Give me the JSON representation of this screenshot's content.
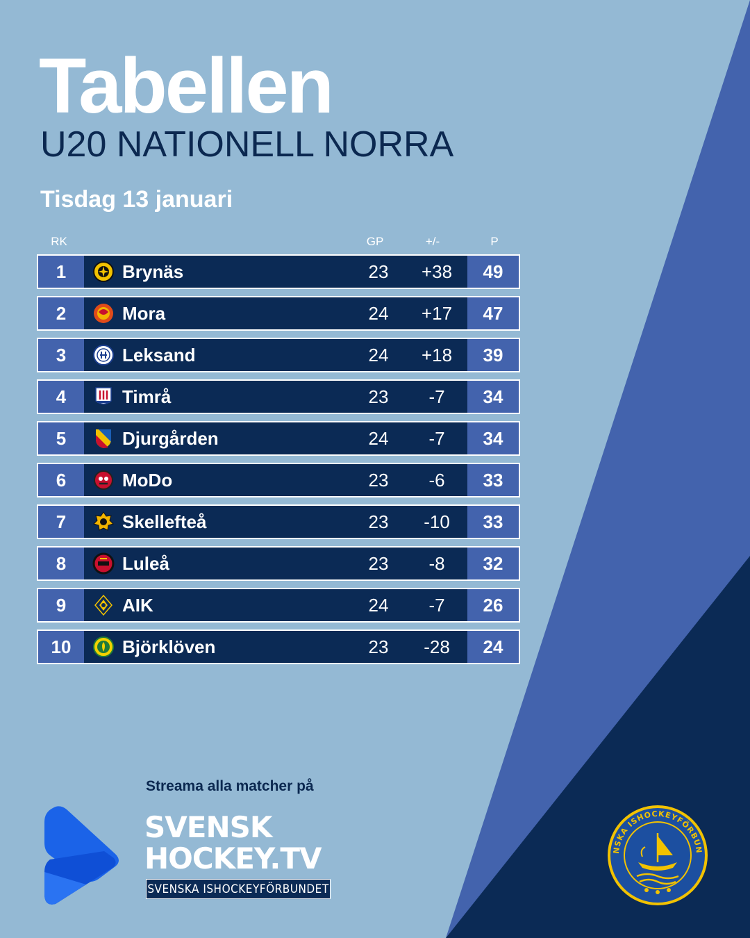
{
  "title": "Tabellen",
  "subtitle": "U20 NATIONELL NORRA",
  "date": "Tisdag 13 januari",
  "columns": {
    "rank": "RK",
    "gp": "GP",
    "diff": "+/-",
    "points": "P"
  },
  "standings": [
    {
      "rank": "1",
      "team": "Brynäs",
      "gp": "23",
      "diff": "+38",
      "points": "49"
    },
    {
      "rank": "2",
      "team": "Mora",
      "gp": "24",
      "diff": "+17",
      "points": "47"
    },
    {
      "rank": "3",
      "team": "Leksand",
      "gp": "24",
      "diff": "+18",
      "points": "39"
    },
    {
      "rank": "4",
      "team": "Timrå",
      "gp": "23",
      "diff": "-7",
      "points": "34"
    },
    {
      "rank": "5",
      "team": "Djurgården",
      "gp": "24",
      "diff": "-7",
      "points": "34"
    },
    {
      "rank": "6",
      "team": "MoDo",
      "gp": "23",
      "diff": "-6",
      "points": "33"
    },
    {
      "rank": "7",
      "team": "Skellefteå",
      "gp": "23",
      "diff": "-10",
      "points": "33"
    },
    {
      "rank": "8",
      "team": "Luleå",
      "gp": "23",
      "diff": "-8",
      "points": "32"
    },
    {
      "rank": "9",
      "team": "AIK",
      "gp": "24",
      "diff": "-7",
      "points": "26"
    },
    {
      "rank": "10",
      "team": "Björklöven",
      "gp": "23",
      "diff": "-28",
      "points": "24"
    }
  ],
  "footer": {
    "stream_label": "Streama alla matcher på",
    "brand_line1": "SVENSK",
    "brand_line2": "HOCKEY.TV",
    "brand_tag": "SVENSKA ISHOCKEYFÖRBUNDET",
    "seal_text": "SVENSKA ISHOCKEYFÖRBUNDET"
  },
  "colors": {
    "background": "#94b9d4",
    "navy": "#0b2a55",
    "accent_blue": "#4363ad",
    "white": "#ffffff"
  }
}
